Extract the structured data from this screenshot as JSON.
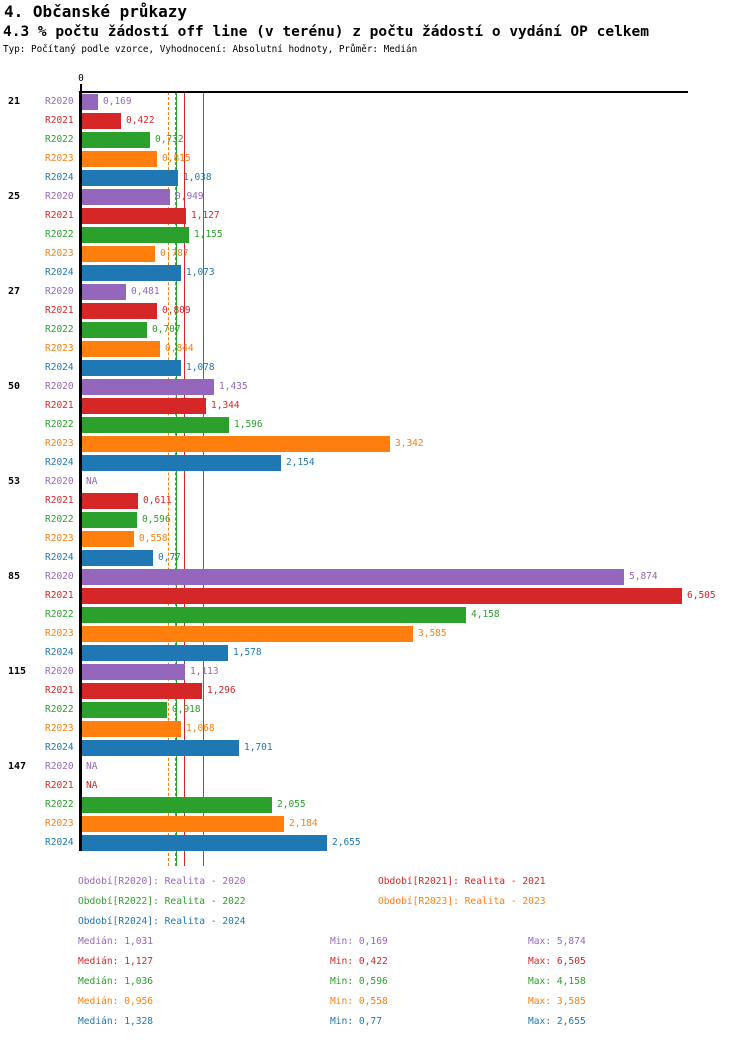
{
  "header": {
    "title": "4. Občanské průkazy",
    "subtitle": "4.3 % počtu žádostí off line (v terénu) z počtu žádostí o vydání OP celkem",
    "meta": "Typ: Počítaný podle vzorce, Vyhodnocení: Absolutní hodnoty, Průměr: Medián"
  },
  "chart_data": {
    "type": "bar",
    "orientation": "horizontal",
    "title": "4. Občanské průkazy",
    "subtitle": "4.3 % počtu žádostí off line (v terénu) z počtu žádostí o vydání OP celkem",
    "axis": {
      "zero_label": "0",
      "x_min": 0,
      "x_max": 6.6,
      "gridlines": false
    },
    "na_label": "NA",
    "categories": [
      "21",
      "25",
      "27",
      "50",
      "53",
      "85",
      "115",
      "147"
    ],
    "stats_labels": {
      "median": "Medián",
      "min": "Min",
      "max": "Max"
    },
    "series": [
      {
        "name": "R2020",
        "color": "#9467bd",
        "legend_label": "Období[R2020]: Realita - 2020",
        "values": [
          0.169,
          0.949,
          0.481,
          1.435,
          null,
          5.874,
          1.113,
          null
        ],
        "value_labels": [
          "0,169",
          "0,949",
          "0,481",
          "1,435",
          "NA",
          "5,874",
          "1,113",
          "NA"
        ],
        "median_value": 1.031,
        "median": "1,031",
        "min": "0,169",
        "max": "5,874",
        "median_line_style": "dashed"
      },
      {
        "name": "R2021",
        "color": "#d62728",
        "legend_label": "Období[R2021]: Realita - 2021",
        "values": [
          0.422,
          1.127,
          0.809,
          1.344,
          0.611,
          6.505,
          1.296,
          null
        ],
        "value_labels": [
          "0,422",
          "1,127",
          "0,809",
          "1,344",
          "0,611",
          "6,505",
          "1,296",
          "NA"
        ],
        "median_value": 1.127,
        "median": "1,127",
        "min": "0,422",
        "max": "6,505",
        "median_line_style": "solid"
      },
      {
        "name": "R2022",
        "color": "#2ca02c",
        "legend_label": "Období[R2022]: Realita - 2022",
        "values": [
          0.732,
          1.155,
          0.707,
          1.596,
          0.596,
          4.158,
          0.918,
          2.055
        ],
        "value_labels": [
          "0,732",
          "1,155",
          "0,707",
          "1,596",
          "0,596",
          "4,158",
          "0,918",
          "2,055"
        ],
        "median_value": 1.036,
        "median": "1,036",
        "min": "0,596",
        "max": "4,158",
        "median_line_style": "solid"
      },
      {
        "name": "R2023",
        "color": "#ff7f0e",
        "legend_label": "Období[R2023]: Realita - 2023",
        "values": [
          0.815,
          0.787,
          0.844,
          3.342,
          0.558,
          3.585,
          1.068,
          2.184
        ],
        "value_labels": [
          "0,815",
          "0,787",
          "0,844",
          "3,342",
          "0,558",
          "3,585",
          "1,068",
          "2,184"
        ],
        "median_value": 0.956,
        "median": "0,956",
        "min": "0,558",
        "max": "3,585",
        "median_line_style": "dashed"
      },
      {
        "name": "R2024",
        "color": "#1f77b4",
        "legend_label": "Období[R2024]: Realita - 2024",
        "values": [
          1.038,
          1.073,
          1.078,
          2.154,
          0.77,
          1.578,
          1.701,
          2.655
        ],
        "value_labels": [
          "1,038",
          "1,073",
          "1,078",
          "2,154",
          "0,77",
          "1,578",
          "1,701",
          "2,655"
        ],
        "median_value": 1.328,
        "median": "1,328",
        "min": "0,77",
        "max": "2,655",
        "median_line_style": "solid"
      }
    ]
  }
}
